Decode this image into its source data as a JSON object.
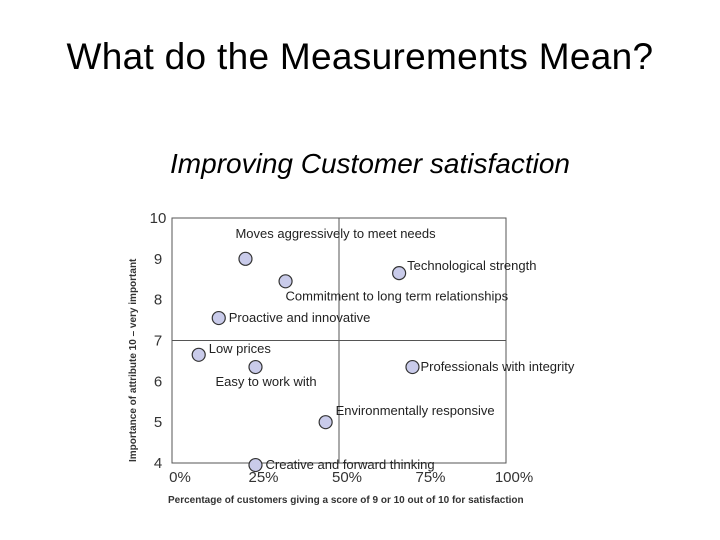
{
  "title": "What do the Measurements Mean?",
  "subtitle": "Improving Customer satisfaction",
  "chart_data": {
    "type": "scatter",
    "xlabel": "Percentage of customers giving a score of 9 or 10 out of 10 for satisfaction",
    "ylabel": "Importance of attribute 10 – very important",
    "xlim": [
      0,
      100
    ],
    "ylim": [
      4,
      10
    ],
    "x_ticks": [
      {
        "value": 0,
        "label": "0%"
      },
      {
        "value": 25,
        "label": "25%"
      },
      {
        "value": 50,
        "label": "50%"
      },
      {
        "value": 75,
        "label": "75%"
      },
      {
        "value": 100,
        "label": "100%"
      }
    ],
    "y_ticks": [
      10,
      9,
      8,
      7,
      6,
      5,
      4
    ],
    "quadrant_lines": {
      "x": 50,
      "y": 7
    },
    "points": [
      {
        "label": "Moves aggressively to meet needs",
        "x": 22,
        "y": 9.0
      },
      {
        "label": "Technological strength",
        "x": 68,
        "y": 8.65
      },
      {
        "label": "Commitment to long term relationships",
        "x": 34,
        "y": 8.45
      },
      {
        "label": "Proactive and innovative",
        "x": 14,
        "y": 7.55
      },
      {
        "label": "Low prices",
        "x": 8,
        "y": 6.65
      },
      {
        "label": "Professionals with integrity",
        "x": 72,
        "y": 6.35
      },
      {
        "label": "Easy to work with",
        "x": 25,
        "y": 6.35
      },
      {
        "label": "Environmentally responsive",
        "x": 46,
        "y": 5.0
      },
      {
        "label": "Creative and forward thinking",
        "x": 25,
        "y": 3.95
      }
    ]
  }
}
